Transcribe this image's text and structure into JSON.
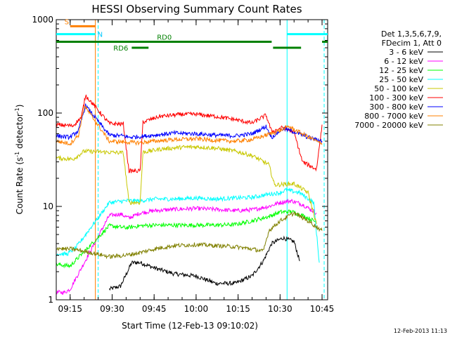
{
  "chart_data": {
    "type": "line",
    "title": "HESSI Observing Summary Count Rates",
    "xlabel": "Start Time (12-Feb-13 09:10:02)",
    "ylabel": "Count Rate (s",
    "ylabel_sup": "-1",
    "ylabel_tail": " detector",
    "ylabel_close": ")",
    "y_scale": "log",
    "ylim": [
      1,
      1000
    ],
    "xlim": [
      "09:10:02",
      "10:47:00"
    ],
    "x_ticks": [
      "09:15",
      "09:30",
      "09:45",
      "10:00",
      "10:15",
      "10:30",
      "10:45"
    ],
    "y_ticks": [
      "1",
      "10",
      "100",
      "1000"
    ],
    "legend_header": [
      "Det 1,3,5,6,7,9,",
      "FDecim 1, Att 0"
    ],
    "legend_placement": "right",
    "timestamp": "12-Feb-2013 11:13",
    "flags": [
      {
        "label": "S",
        "color": "#ff8000",
        "start": "09:15:00",
        "end": "09:24:00",
        "value": 850
      },
      {
        "label": "N",
        "color": "#00ffff",
        "start": "09:10:02",
        "end": "09:24:00",
        "value": 700
      },
      {
        "label": "RD0",
        "color": "#008000",
        "start": "09:10:02",
        "end": "10:27:00",
        "value": 580
      },
      {
        "label": "RD6",
        "color": "#008000",
        "start": "09:37:00",
        "end": "09:43:00",
        "value": 500
      }
    ],
    "extra_bars": [
      {
        "color": "#008000",
        "start": "10:27:30",
        "end": "10:37:30",
        "value": 500
      },
      {
        "color": "#008000",
        "start": "10:45:00",
        "end": "10:47:00",
        "value": 580
      },
      {
        "color": "#00ffff",
        "start": "10:32:30",
        "end": "10:47:00",
        "value": 700
      }
    ],
    "vlines": [
      {
        "time": "09:10:02",
        "color": "#00ffff",
        "style": "solid"
      },
      {
        "time": "09:24:00",
        "color": "#ff8000",
        "style": "solid"
      },
      {
        "time": "09:25:00",
        "color": "#00ffff",
        "style": "dashed"
      },
      {
        "time": "10:32:30",
        "color": "#00ffff",
        "style": "solid"
      },
      {
        "time": "10:45:45",
        "color": "#00ffff",
        "style": "dashed"
      }
    ],
    "series": [
      {
        "name": "3 - 6 keV",
        "color": "#000000",
        "points": [
          [
            "09:29:00",
            1.3
          ],
          [
            "09:33:00",
            1.4
          ],
          [
            "09:37:00",
            2.5
          ],
          [
            "09:40:00",
            2.5
          ],
          [
            "09:45:00",
            2.2
          ],
          [
            "09:52:00",
            1.9
          ],
          [
            "10:00:00",
            1.8
          ],
          [
            "10:07:00",
            1.5
          ],
          [
            "10:14:00",
            1.5
          ],
          [
            "10:20:00",
            1.8
          ],
          [
            "10:24:00",
            2.6
          ],
          [
            "10:27:00",
            4.0
          ],
          [
            "10:31:00",
            4.6
          ],
          [
            "10:35:00",
            4.2
          ],
          [
            "10:37:00",
            2.6
          ]
        ]
      },
      {
        "name": "6 - 12 keV",
        "color": "#ff00ff",
        "points": [
          [
            "09:10:02",
            1.2
          ],
          [
            "09:13:00",
            1.2
          ],
          [
            "09:15:00",
            1.3
          ],
          [
            "09:29:00",
            8.0
          ],
          [
            "09:33:00",
            8.3
          ],
          [
            "09:36:00",
            7.5
          ],
          [
            "09:40:00",
            8.5
          ],
          [
            "09:45:00",
            9.0
          ],
          [
            "09:52:00",
            9.3
          ],
          [
            "10:00:00",
            9.5
          ],
          [
            "10:07:00",
            9.3
          ],
          [
            "10:14:00",
            9.0
          ],
          [
            "10:20:00",
            9.2
          ],
          [
            "10:26:00",
            10.0
          ],
          [
            "10:30:00",
            11.0
          ],
          [
            "10:34:00",
            11.5
          ],
          [
            "10:38:00",
            10.5
          ],
          [
            "10:43:00",
            8.5
          ]
        ]
      },
      {
        "name": "12 - 25 keV",
        "color": "#00ff00",
        "points": [
          [
            "09:10:02",
            2.4
          ],
          [
            "09:15:00",
            2.3
          ],
          [
            "09:29:00",
            6.2
          ],
          [
            "09:35:00",
            5.9
          ],
          [
            "09:40:00",
            6.2
          ],
          [
            "09:45:00",
            6.3
          ],
          [
            "09:52:00",
            6.3
          ],
          [
            "10:00:00",
            6.3
          ],
          [
            "10:07:00",
            6.3
          ],
          [
            "10:14:00",
            6.4
          ],
          [
            "10:20:00",
            7.0
          ],
          [
            "10:26:00",
            7.8
          ],
          [
            "10:30:00",
            8.7
          ],
          [
            "10:34:00",
            8.8
          ],
          [
            "10:38:00",
            8.0
          ],
          [
            "10:43:00",
            6.8
          ]
        ]
      },
      {
        "name": "25 - 50 keV",
        "color": "#00ffff",
        "points": [
          [
            "09:10:02",
            3.1
          ],
          [
            "09:14:00",
            3.1
          ],
          [
            "09:17:00",
            3.6
          ],
          [
            "09:29:00",
            11.0
          ],
          [
            "09:35:00",
            11.5
          ],
          [
            "09:40:00",
            11.5
          ],
          [
            "09:45:00",
            12.0
          ],
          [
            "09:52:00",
            12.0
          ],
          [
            "10:00:00",
            12.3
          ],
          [
            "10:07:00",
            12.0
          ],
          [
            "10:14:00",
            12.3
          ],
          [
            "10:20:00",
            12.5
          ],
          [
            "10:26:00",
            13.5
          ],
          [
            "10:30:00",
            14.0
          ],
          [
            "10:32:00",
            15.0
          ],
          [
            "10:37:00",
            14.0
          ],
          [
            "10:42:00",
            11.0
          ],
          [
            "10:44:00",
            2.5
          ]
        ]
      },
      {
        "name": "50 - 100 keV",
        "color": "#c8c800",
        "points": [
          [
            "09:10:02",
            33.0
          ],
          [
            "09:16:00",
            32.0
          ],
          [
            "09:20:00",
            39.0
          ],
          [
            "09:29:00",
            38.0
          ],
          [
            "09:34:00",
            37.5
          ],
          [
            "09:36:00",
            11.0
          ],
          [
            "09:40:00",
            11.0
          ],
          [
            "09:41:00",
            38.0
          ],
          [
            "09:47:00",
            41.0
          ],
          [
            "09:55:00",
            43.0
          ],
          [
            "10:00:00",
            43.5
          ],
          [
            "10:07:00",
            42.0
          ],
          [
            "10:14:00",
            39.0
          ],
          [
            "10:20:00",
            35.0
          ],
          [
            "10:26:00",
            28.0
          ],
          [
            "10:28:00",
            17.0
          ],
          [
            "10:35:00",
            17.5
          ],
          [
            "10:40:00",
            14.0
          ],
          [
            "10:43:00",
            6.5
          ]
        ]
      },
      {
        "name": "100 - 300 keV",
        "color": "#ff0000",
        "points": [
          [
            "09:10:02",
            75.0
          ],
          [
            "09:16:00",
            73.0
          ],
          [
            "09:19:00",
            90.0
          ],
          [
            "09:20:30",
            155.0
          ],
          [
            "09:29:00",
            77.0
          ],
          [
            "09:34:00",
            76.0
          ],
          [
            "09:36:00",
            24.0
          ],
          [
            "09:40:00",
            24.0
          ],
          [
            "09:41:00",
            80.0
          ],
          [
            "09:47:00",
            92.0
          ],
          [
            "09:55:00",
            97.0
          ],
          [
            "10:00:00",
            97.0
          ],
          [
            "10:07:00",
            92.0
          ],
          [
            "10:14:00",
            85.0
          ],
          [
            "10:20:00",
            78.0
          ],
          [
            "10:25:00",
            95.0
          ],
          [
            "10:27:00",
            63.0
          ],
          [
            "10:31:00",
            70.0
          ],
          [
            "10:35:00",
            62.0
          ],
          [
            "10:38:00",
            30.0
          ],
          [
            "10:43:00",
            25.0
          ],
          [
            "10:45:00",
            75.0
          ]
        ]
      },
      {
        "name": "300 - 800 keV",
        "color": "#0000ff",
        "points": [
          [
            "09:10:02",
            57.0
          ],
          [
            "09:15:00",
            55.0
          ],
          [
            "09:18:00",
            65.0
          ],
          [
            "09:20:30",
            120.0
          ],
          [
            "09:29:00",
            58.0
          ],
          [
            "09:34:00",
            57.0
          ],
          [
            "09:36:00",
            55.0
          ],
          [
            "09:40:00",
            56.0
          ],
          [
            "09:45:00",
            58.0
          ],
          [
            "09:52:00",
            61.0
          ],
          [
            "10:00:00",
            60.0
          ],
          [
            "10:07:00",
            58.0
          ],
          [
            "10:14:00",
            57.0
          ],
          [
            "10:20:00",
            60.0
          ],
          [
            "10:25:00",
            72.0
          ],
          [
            "10:27:00",
            55.0
          ],
          [
            "10:31:00",
            68.0
          ],
          [
            "10:35:00",
            63.0
          ],
          [
            "10:40:00",
            55.0
          ],
          [
            "10:45:00",
            50.0
          ]
        ]
      },
      {
        "name": "800 - 7000 keV",
        "color": "#ff8000",
        "points": [
          [
            "09:10:02",
            50.0
          ],
          [
            "09:15:00",
            47.0
          ],
          [
            "09:18:00",
            58.0
          ],
          [
            "09:20:00",
            120.0
          ],
          [
            "09:29:00",
            50.0
          ],
          [
            "09:34:00",
            49.0
          ],
          [
            "09:40:00",
            48.0
          ],
          [
            "09:45:00",
            50.0
          ],
          [
            "09:52:00",
            52.0
          ],
          [
            "10:00:00",
            53.0
          ],
          [
            "10:07:00",
            51.0
          ],
          [
            "10:14:00",
            50.0
          ],
          [
            "10:20:00",
            52.0
          ],
          [
            "10:25:00",
            58.0
          ],
          [
            "10:30:00",
            65.0
          ],
          [
            "10:33:00",
            72.0
          ],
          [
            "10:37:00",
            62.0
          ],
          [
            "10:42:00",
            52.0
          ],
          [
            "10:45:00",
            46.0
          ]
        ]
      },
      {
        "name": "7000 - 20000 keV",
        "color": "#808000",
        "points": [
          [
            "09:10:02",
            3.6
          ],
          [
            "09:13:00",
            3.5
          ],
          [
            "09:16:00",
            3.5
          ],
          [
            "09:29:00",
            2.9
          ],
          [
            "09:35:00",
            3.0
          ],
          [
            "09:40:00",
            3.2
          ],
          [
            "09:45:00",
            3.5
          ],
          [
            "09:52:00",
            3.8
          ],
          [
            "10:00:00",
            3.9
          ],
          [
            "10:07:00",
            3.8
          ],
          [
            "10:14:00",
            3.7
          ],
          [
            "10:20:00",
            3.5
          ],
          [
            "10:24:00",
            3.3
          ],
          [
            "10:26:00",
            5.5
          ],
          [
            "10:30:00",
            7.0
          ],
          [
            "10:35:00",
            8.5
          ],
          [
            "10:40:00",
            7.0
          ],
          [
            "10:45:00",
            5.5
          ]
        ]
      }
    ]
  }
}
